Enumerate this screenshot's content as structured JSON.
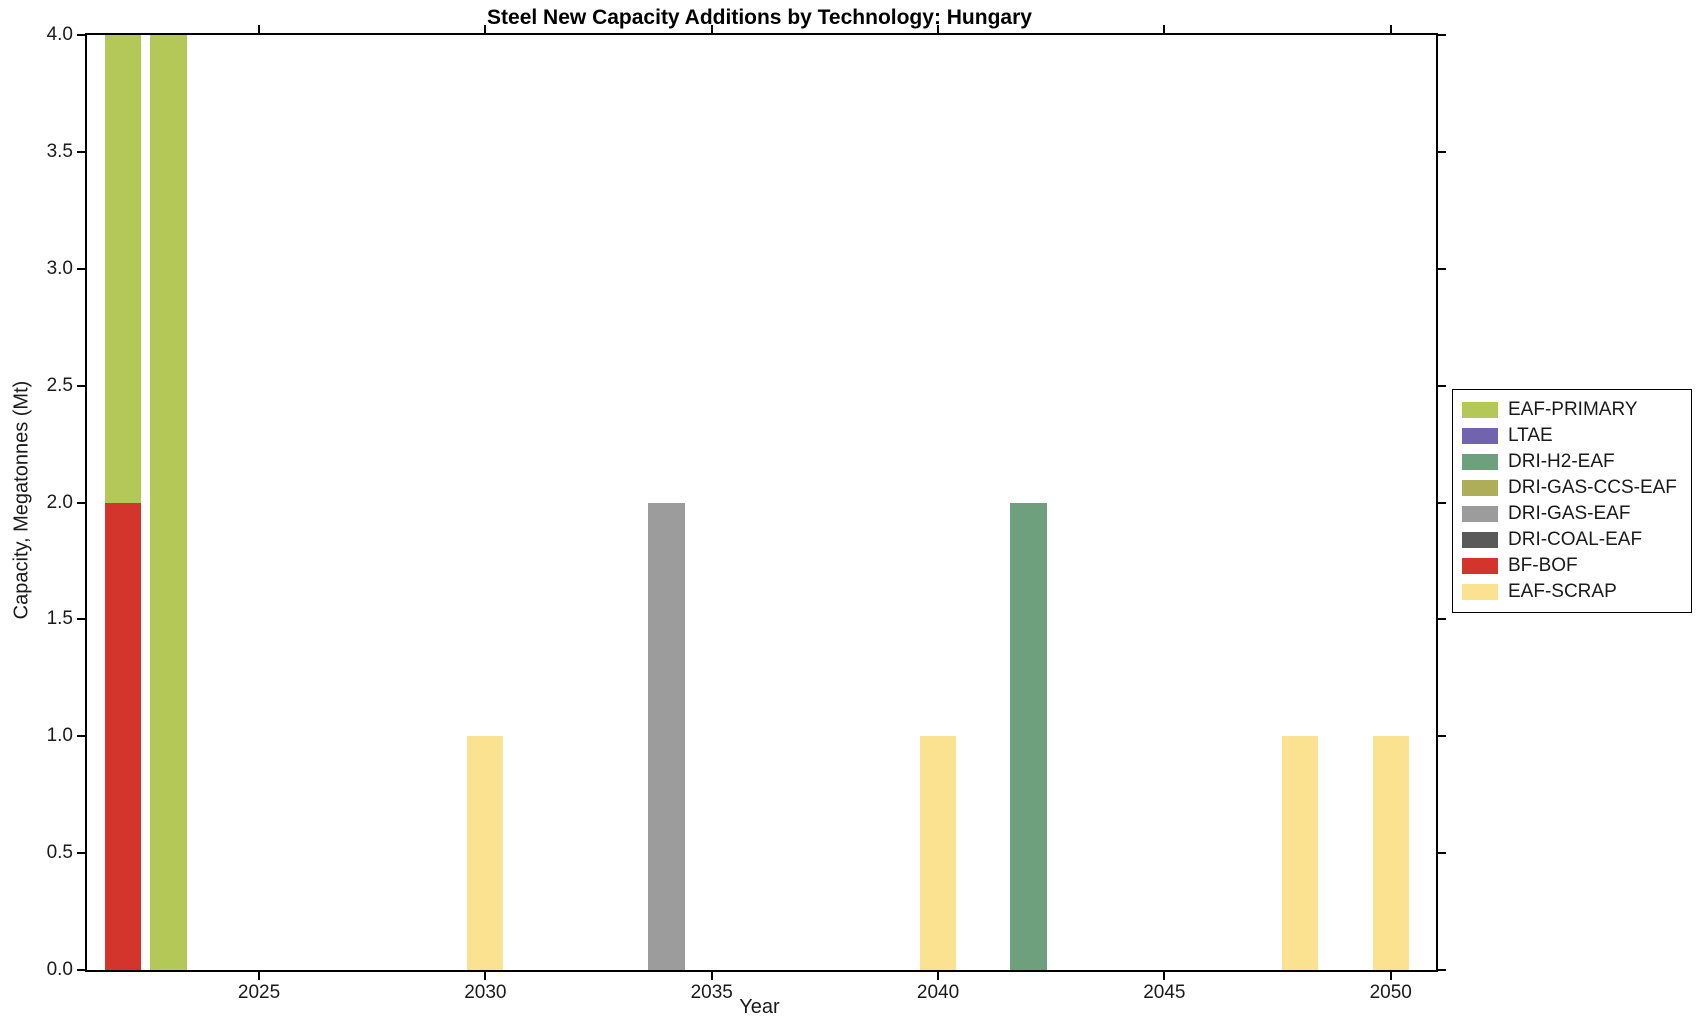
{
  "chart_data": {
    "type": "bar",
    "title": "Steel New Capacity Additions by Technology: Hungary",
    "xlabel": "Year",
    "ylabel": "Capacity, Megatonnes (Mt)",
    "xlim": [
      2021.2,
      2051.0
    ],
    "ylim": [
      0,
      4.0
    ],
    "x_ticks": [
      2025,
      2030,
      2035,
      2040,
      2045,
      2050
    ],
    "x_tick_labels": [
      "2025",
      "2030",
      "2035",
      "2040",
      "2045",
      "2050"
    ],
    "y_ticks": [
      0.0,
      0.5,
      1.0,
      1.5,
      2.0,
      2.5,
      3.0,
      3.5,
      4.0
    ],
    "y_tick_labels": [
      "0.0",
      "0.5",
      "1.0",
      "1.5",
      "2.0",
      "2.5",
      "3.0",
      "3.5",
      "4.0"
    ],
    "grid": false,
    "legend_position": "right-outside",
    "bar_width_years": 0.8,
    "series_colors": {
      "EAF-PRIMARY": "#b4c857",
      "LTAE": "#7163ae",
      "DRI-H2-EAF": "#6fa07e",
      "DRI-GAS-CCS-EAF": "#aeae59",
      "DRI-GAS-EAF": "#9c9c9c",
      "DRI-COAL-EAF": "#595959",
      "BF-BOF": "#d3342c",
      "EAF-SCRAP": "#fae291"
    },
    "legend_entries": [
      "EAF-PRIMARY",
      "LTAE",
      "DRI-H2-EAF",
      "DRI-GAS-CCS-EAF",
      "DRI-GAS-EAF",
      "DRI-COAL-EAF",
      "BF-BOF",
      "EAF-SCRAP"
    ],
    "bars": [
      {
        "year": 2022,
        "segments": [
          {
            "tech": "BF-BOF",
            "value": 2.0
          },
          {
            "tech": "EAF-PRIMARY",
            "value": 2.0
          }
        ]
      },
      {
        "year": 2023,
        "segments": [
          {
            "tech": "EAF-PRIMARY",
            "value": 4.0
          }
        ]
      },
      {
        "year": 2030,
        "segments": [
          {
            "tech": "EAF-SCRAP",
            "value": 1.0
          }
        ]
      },
      {
        "year": 2034,
        "segments": [
          {
            "tech": "DRI-GAS-EAF",
            "value": 2.0
          }
        ]
      },
      {
        "year": 2040,
        "segments": [
          {
            "tech": "EAF-SCRAP",
            "value": 1.0
          }
        ]
      },
      {
        "year": 2042,
        "segments": [
          {
            "tech": "DRI-H2-EAF",
            "value": 2.0
          }
        ]
      },
      {
        "year": 2048,
        "segments": [
          {
            "tech": "EAF-SCRAP",
            "value": 1.0
          }
        ]
      },
      {
        "year": 2050,
        "segments": [
          {
            "tech": "EAF-SCRAP",
            "value": 1.0
          }
        ]
      }
    ]
  }
}
